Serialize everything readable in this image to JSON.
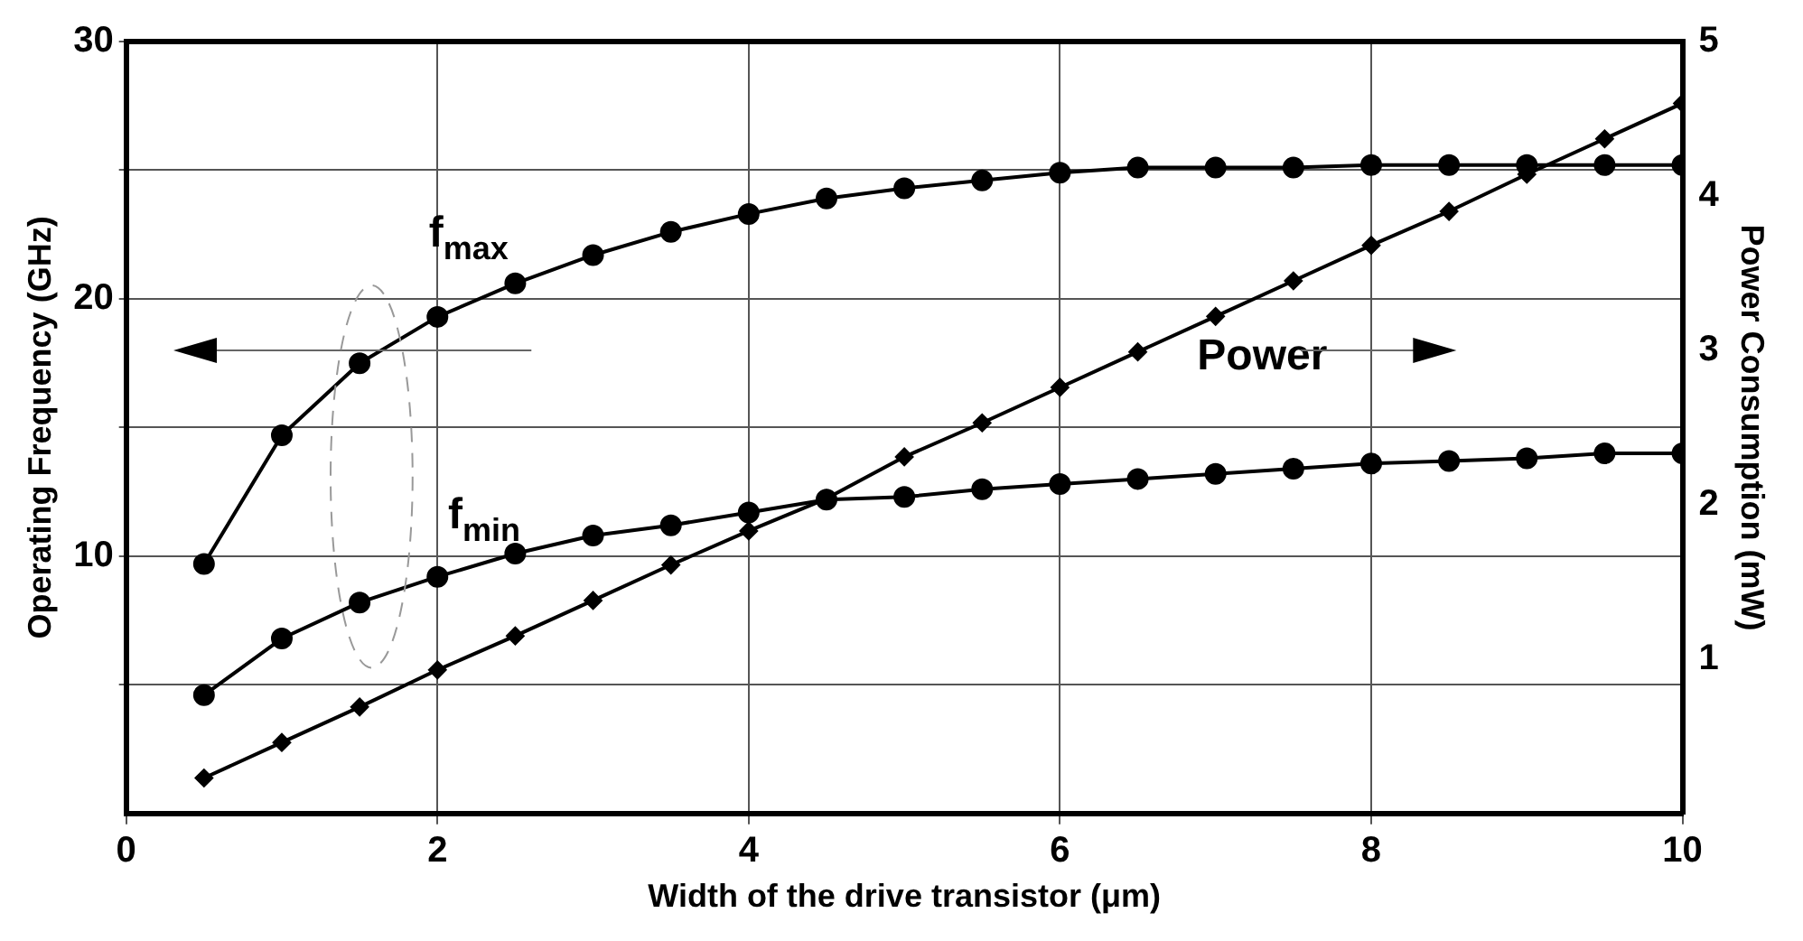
{
  "chart_data": {
    "type": "line",
    "xlabel": "Width of the drive transistor (μm)",
    "ylabel": "Operating Frequency (GHz)",
    "y2label": "Power Consumption (mW)",
    "x": [
      0.5,
      1,
      1.5,
      2,
      2.5,
      3,
      3.5,
      4,
      4.5,
      5,
      5.5,
      6,
      6.5,
      7,
      7.5,
      8,
      8.5,
      9,
      9.5,
      10
    ],
    "series": [
      {
        "color": "#000000",
        "marker": "circle",
        "values": [
          9.7,
          14.7,
          17.5,
          19.3,
          20.6,
          21.7,
          22.6,
          23.3,
          23.9,
          24.3,
          24.6,
          24.9,
          25.1,
          25.1,
          25.1,
          25.2,
          25.2,
          25.2,
          25.2,
          25.2
        ]
      },
      {
        "color": "#000000",
        "marker": "circle",
        "values": [
          4.6,
          6.8,
          8.2,
          9.2,
          10.1,
          10.8,
          11.2,
          11.7,
          12.2,
          12.3,
          12.6,
          12.8,
          13.0,
          13.2,
          13.4,
          13.6,
          13.7,
          13.8,
          14.0,
          14.0
        ]
      },
      {
        "color": "#000000",
        "marker": "diamond",
        "axis": "y2",
        "values": [
          0.23,
          0.46,
          0.69,
          0.93,
          1.15,
          1.38,
          1.61,
          1.83,
          2.04,
          2.31,
          2.53,
          2.76,
          2.99,
          3.22,
          3.45,
          3.68,
          3.9,
          4.14,
          4.37,
          4.6
        ]
      }
    ],
    "xlim": [
      0,
      10
    ],
    "xticks": [
      0,
      2,
      4,
      6,
      8,
      10
    ],
    "ylim": [
      0,
      30
    ],
    "yticks": [
      {
        "value": 5,
        "label": null
      },
      10,
      {
        "value": 15,
        "label": null
      },
      20,
      {
        "value": 25,
        "label": null
      },
      30
    ],
    "y2lim": [
      0,
      5
    ],
    "y2ticks": [
      1,
      2,
      3,
      4,
      5
    ],
    "annotations": [
      "f$_{max}$",
      "f$_{min}$",
      "Power"
    ],
    "grid": true,
    "legend": false,
    "line_style": "solid"
  }
}
